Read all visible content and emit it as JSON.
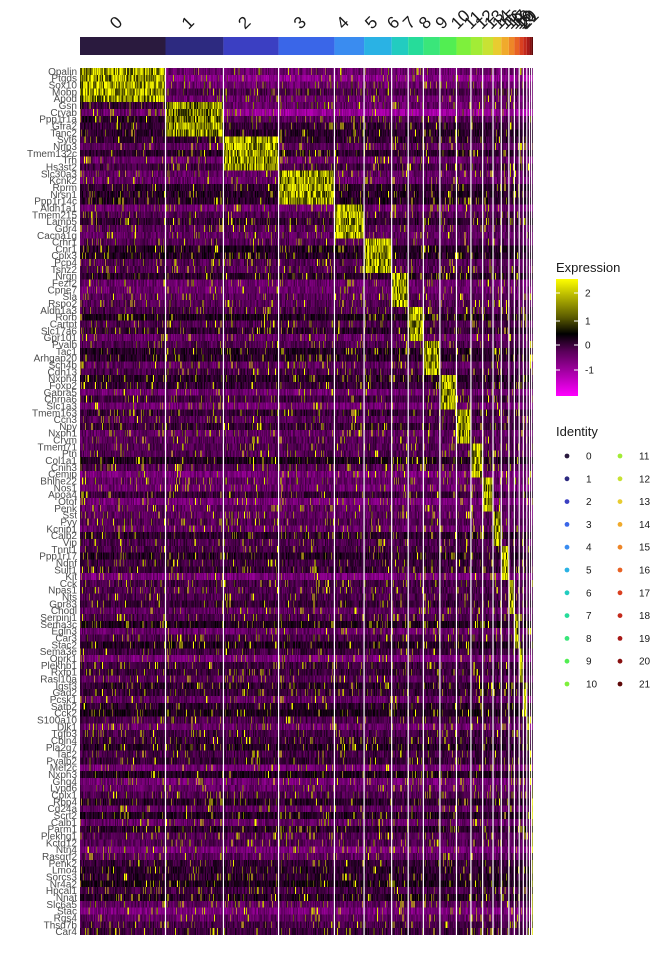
{
  "chart_data": {
    "type": "heatmap",
    "clusters": [
      "0",
      "1",
      "2",
      "3",
      "4",
      "5",
      "6",
      "7",
      "8",
      "9",
      "10",
      "11",
      "12",
      "13",
      "14",
      "15",
      "16",
      "17",
      "18",
      "19",
      "20",
      "21"
    ],
    "cluster_colors": [
      "#2a1a3e",
      "#2d2a80",
      "#3b3fc2",
      "#3a66e8",
      "#3a8cf0",
      "#2ab2e4",
      "#22ccc0",
      "#26dc9a",
      "#3ae67a",
      "#52ee52",
      "#7ef03c",
      "#a2ec36",
      "#c8e234",
      "#e8cc30",
      "#f0aa2c",
      "#ee8628",
      "#e86224",
      "#da4020",
      "#c42a1c",
      "#a81a18",
      "#881010",
      "#5e0808"
    ],
    "cluster_sizes": [
      124,
      84,
      80,
      81,
      43,
      40,
      24,
      22,
      24,
      24,
      21,
      17,
      15,
      12,
      11,
      8,
      7,
      6,
      5,
      4,
      3,
      2
    ],
    "genes": [
      "Opalin",
      "Ptgds",
      "Sox10",
      "Mobp",
      "Apod",
      "Gsn",
      "Cryab",
      "Ppp1r1a",
      "Gfra2",
      "Tanc2",
      "Syt6",
      "Nrip3",
      "Tmem132c",
      "Trh",
      "Hs3st2",
      "Slc30a3",
      "Kcnk2",
      "Rprm",
      "Nrsn1",
      "Ppp1r14c",
      "Aldh1a1",
      "Tmem215",
      "Lamp5",
      "Gpr4",
      "Cacna1g",
      "Crhr1",
      "Cnr1",
      "Cplx3",
      "Pcp4",
      "Tshz2",
      "Nrgn",
      "Fezf2",
      "Cpne7",
      "Sla",
      "Rspo2",
      "Aldh1a3",
      "Rorb",
      "Cartpt",
      "Slc17a6",
      "Gpr101",
      "Pvalb",
      "Tac1",
      "Arhgap20",
      "Scn4b",
      "Cdh13",
      "Nxph4",
      "Foxp2",
      "Gabra5",
      "Chrna6",
      "Slc1a3",
      "Tmem163",
      "Ccn3",
      "Npy",
      "Nxph1",
      "Crym",
      "Tmem71",
      "Ptn",
      "Col1a1",
      "Cnih3",
      "Cemip",
      "Bhlhe22",
      "Nos1",
      "Apoa4",
      "Otof",
      "Penk",
      "Sst",
      "Pyy",
      "Kcnip1",
      "Calb2",
      "Vip",
      "Tnnt1",
      "Ppp1r17",
      "Ndnf",
      "Sulf1",
      "Kit",
      "Cck",
      "Npas1",
      "Nts",
      "Gpr83",
      "Chodl",
      "Serpini1",
      "Sema3c",
      "Egln3",
      "Car3",
      "Stac2",
      "Sema3e",
      "Oprk1",
      "Plekhb1",
      "Rxfp1",
      "Rasl10a",
      "Igsf3",
      "Gad2",
      "Pcsk1",
      "Satb2",
      "Cck2",
      "S100a10",
      "Dlk1",
      "Tgfb3",
      "Cbln4",
      "Pla2g7",
      "Tac2",
      "Pvalb2",
      "Mef2c",
      "Nxph3",
      "Gng4",
      "Lypd6",
      "Cplx1",
      "Rbp4",
      "Cd24a",
      "Scrt2",
      "Calb1",
      "Parm1",
      "Plekhg1",
      "Kctd12",
      "Ntn4",
      "Rasgrf2",
      "Penk2",
      "Lmo4",
      "Sorcs3",
      "Nr4a2",
      "Hpcal1",
      "Nnat",
      "Slc6a5",
      "Stac",
      "Rgs4",
      "Thsd7b",
      "Car4"
    ]
  }
}
